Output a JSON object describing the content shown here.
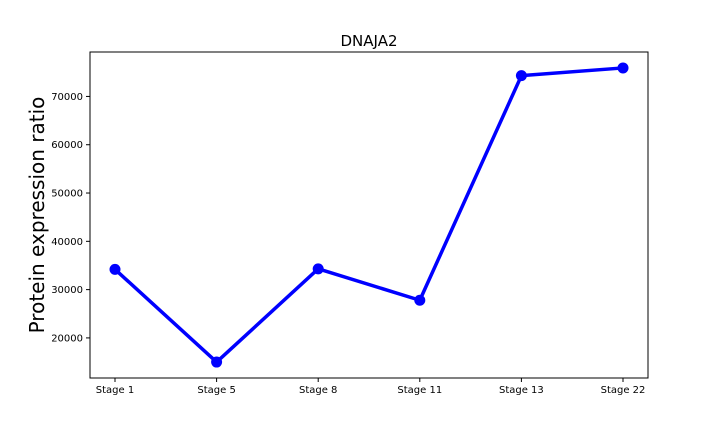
{
  "chart_data": {
    "type": "line",
    "title": "DNAJA2",
    "xlabel": "",
    "ylabel": "Protein expression ratio",
    "categories": [
      "Stage 1",
      "Stage 5",
      "Stage 8",
      "Stage 11",
      "Stage 13",
      "Stage 22"
    ],
    "series": [
      {
        "values": [
          34200,
          15000,
          34300,
          27800,
          74300,
          75900
        ]
      }
    ],
    "ylim": [
      11700,
      79200
    ],
    "yticks": [
      20000,
      30000,
      40000,
      50000,
      60000,
      70000
    ],
    "ytick_labels": [
      "20000",
      "30000",
      "40000",
      "50000",
      "60000",
      "70000"
    ],
    "grid": false,
    "legend": "none",
    "line_color": "#0000ff"
  }
}
